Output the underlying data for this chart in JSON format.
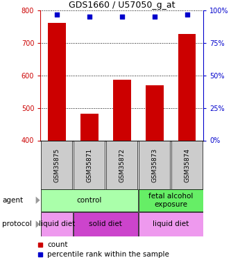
{
  "title": "GDS1660 / U57050_g_at",
  "samples": [
    "GSM35875",
    "GSM35871",
    "GSM35872",
    "GSM35873",
    "GSM35874"
  ],
  "counts": [
    762,
    483,
    587,
    570,
    728
  ],
  "percentile_ranks": [
    97,
    95,
    95,
    95,
    97
  ],
  "ylim_left": [
    400,
    800
  ],
  "ylim_right": [
    0,
    100
  ],
  "yticks_left": [
    400,
    500,
    600,
    700,
    800
  ],
  "yticks_right": [
    0,
    25,
    50,
    75,
    100
  ],
  "bar_color": "#cc0000",
  "dot_color": "#0000cc",
  "bar_width": 0.55,
  "agent_groups": [
    {
      "label": "control",
      "start": 0,
      "end": 3,
      "color": "#aaffaa"
    },
    {
      "label": "fetal alcohol\nexposure",
      "start": 3,
      "end": 5,
      "color": "#66ee66"
    }
  ],
  "protocol_groups": [
    {
      "label": "liquid diet",
      "start": 0,
      "end": 1,
      "color": "#ee99ee"
    },
    {
      "label": "solid diet",
      "start": 1,
      "end": 3,
      "color": "#cc44cc"
    },
    {
      "label": "liquid diet",
      "start": 3,
      "end": 5,
      "color": "#ee99ee"
    }
  ],
  "left_axis_color": "#cc0000",
  "right_axis_color": "#0000cc",
  "background_color": "#ffffff",
  "sample_box_color": "#cccccc",
  "arrow_color": "#999999"
}
